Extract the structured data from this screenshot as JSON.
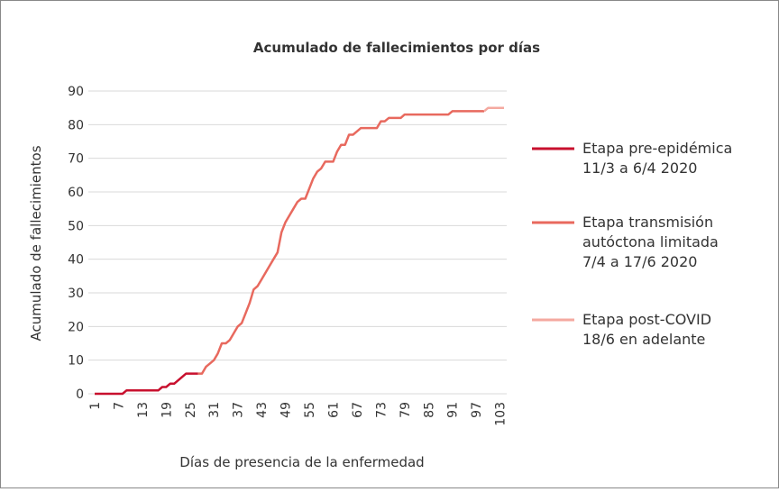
{
  "chart_data": {
    "type": "line",
    "title": "Acumulado de fallecimientos por días",
    "xlabel": "Días de presencia de la enfermedad",
    "ylabel": "Acumulado de fallecimientos",
    "x": [
      1,
      2,
      3,
      4,
      5,
      6,
      7,
      8,
      9,
      10,
      11,
      12,
      13,
      14,
      15,
      16,
      17,
      18,
      19,
      20,
      21,
      22,
      23,
      24,
      25,
      26,
      27,
      28,
      29,
      30,
      31,
      32,
      33,
      34,
      35,
      36,
      37,
      38,
      39,
      40,
      41,
      42,
      43,
      44,
      45,
      46,
      47,
      48,
      49,
      50,
      51,
      52,
      53,
      54,
      55,
      56,
      57,
      58,
      59,
      60,
      61,
      62,
      63,
      64,
      65,
      66,
      67,
      68,
      69,
      70,
      71,
      72,
      73,
      74,
      75,
      76,
      77,
      78,
      79,
      80,
      81,
      82,
      83,
      84,
      85,
      86,
      87,
      88,
      89,
      90,
      91,
      92,
      93,
      94,
      95,
      96,
      97,
      98,
      99,
      100,
      101,
      102,
      103,
      104
    ],
    "xlim": [
      1,
      104
    ],
    "xticks": [
      1,
      7,
      13,
      19,
      25,
      31,
      37,
      43,
      49,
      55,
      61,
      67,
      73,
      79,
      85,
      91,
      97,
      103
    ],
    "ylim": [
      0,
      90
    ],
    "yticks": [
      0,
      10,
      20,
      30,
      40,
      50,
      60,
      70,
      80,
      90
    ],
    "grid": true,
    "legend": "right",
    "series": [
      {
        "name": "Etapa pre-epidémica\n11/3 a 6/4 2020",
        "color": "#c8102e",
        "values": [
          0,
          0,
          0,
          0,
          0,
          0,
          0,
          0,
          1,
          1,
          1,
          1,
          1,
          1,
          1,
          1,
          1,
          2,
          2,
          3,
          3,
          4,
          5,
          6,
          6,
          6,
          6,
          null,
          null,
          null,
          null,
          null,
          null,
          null,
          null,
          null,
          null,
          null,
          null,
          null,
          null,
          null,
          null,
          null,
          null,
          null,
          null,
          null,
          null,
          null,
          null,
          null,
          null,
          null,
          null,
          null,
          null,
          null,
          null,
          null,
          null,
          null,
          null,
          null,
          null,
          null,
          null,
          null,
          null,
          null,
          null,
          null,
          null,
          null,
          null,
          null,
          null,
          null,
          null,
          null,
          null,
          null,
          null,
          null,
          null,
          null,
          null,
          null,
          null,
          null,
          null,
          null,
          null,
          null,
          null,
          null,
          null,
          null,
          null,
          null,
          null,
          null,
          null,
          null
        ]
      },
      {
        "name": "Etapa transmisión\nautóctona limitada\n7/4 a 17/6 2020",
        "color": "#e8695e",
        "values": [
          null,
          null,
          null,
          null,
          null,
          null,
          null,
          null,
          null,
          null,
          null,
          null,
          null,
          null,
          null,
          null,
          null,
          null,
          null,
          null,
          null,
          null,
          null,
          null,
          null,
          null,
          6,
          6,
          8,
          9,
          10,
          12,
          15,
          15,
          16,
          18,
          20,
          21,
          24,
          27,
          31,
          32,
          34,
          36,
          38,
          40,
          42,
          48,
          51,
          53,
          55,
          57,
          58,
          58,
          61,
          64,
          66,
          67,
          69,
          69,
          69,
          72,
          74,
          74,
          77,
          77,
          78,
          79,
          79,
          79,
          79,
          79,
          81,
          81,
          82,
          82,
          82,
          82,
          83,
          83,
          83,
          83,
          83,
          83,
          83,
          83,
          83,
          83,
          83,
          83,
          84,
          84,
          84,
          84,
          84,
          84,
          84,
          84,
          84,
          null,
          null,
          null,
          null,
          null
        ]
      },
      {
        "name": "Etapa post-COVID\n18/6 en adelante",
        "color": "#f4a9a0",
        "values": [
          null,
          null,
          null,
          null,
          null,
          null,
          null,
          null,
          null,
          null,
          null,
          null,
          null,
          null,
          null,
          null,
          null,
          null,
          null,
          null,
          null,
          null,
          null,
          null,
          null,
          null,
          null,
          null,
          null,
          null,
          null,
          null,
          null,
          null,
          null,
          null,
          null,
          null,
          null,
          null,
          null,
          null,
          null,
          null,
          null,
          null,
          null,
          null,
          null,
          null,
          null,
          null,
          null,
          null,
          null,
          null,
          null,
          null,
          null,
          null,
          null,
          null,
          null,
          null,
          null,
          null,
          null,
          null,
          null,
          null,
          null,
          null,
          null,
          null,
          null,
          null,
          null,
          null,
          null,
          null,
          null,
          null,
          null,
          null,
          null,
          null,
          null,
          null,
          null,
          null,
          null,
          null,
          null,
          null,
          null,
          null,
          null,
          null,
          84,
          85,
          85,
          85,
          85,
          85
        ]
      }
    ]
  }
}
